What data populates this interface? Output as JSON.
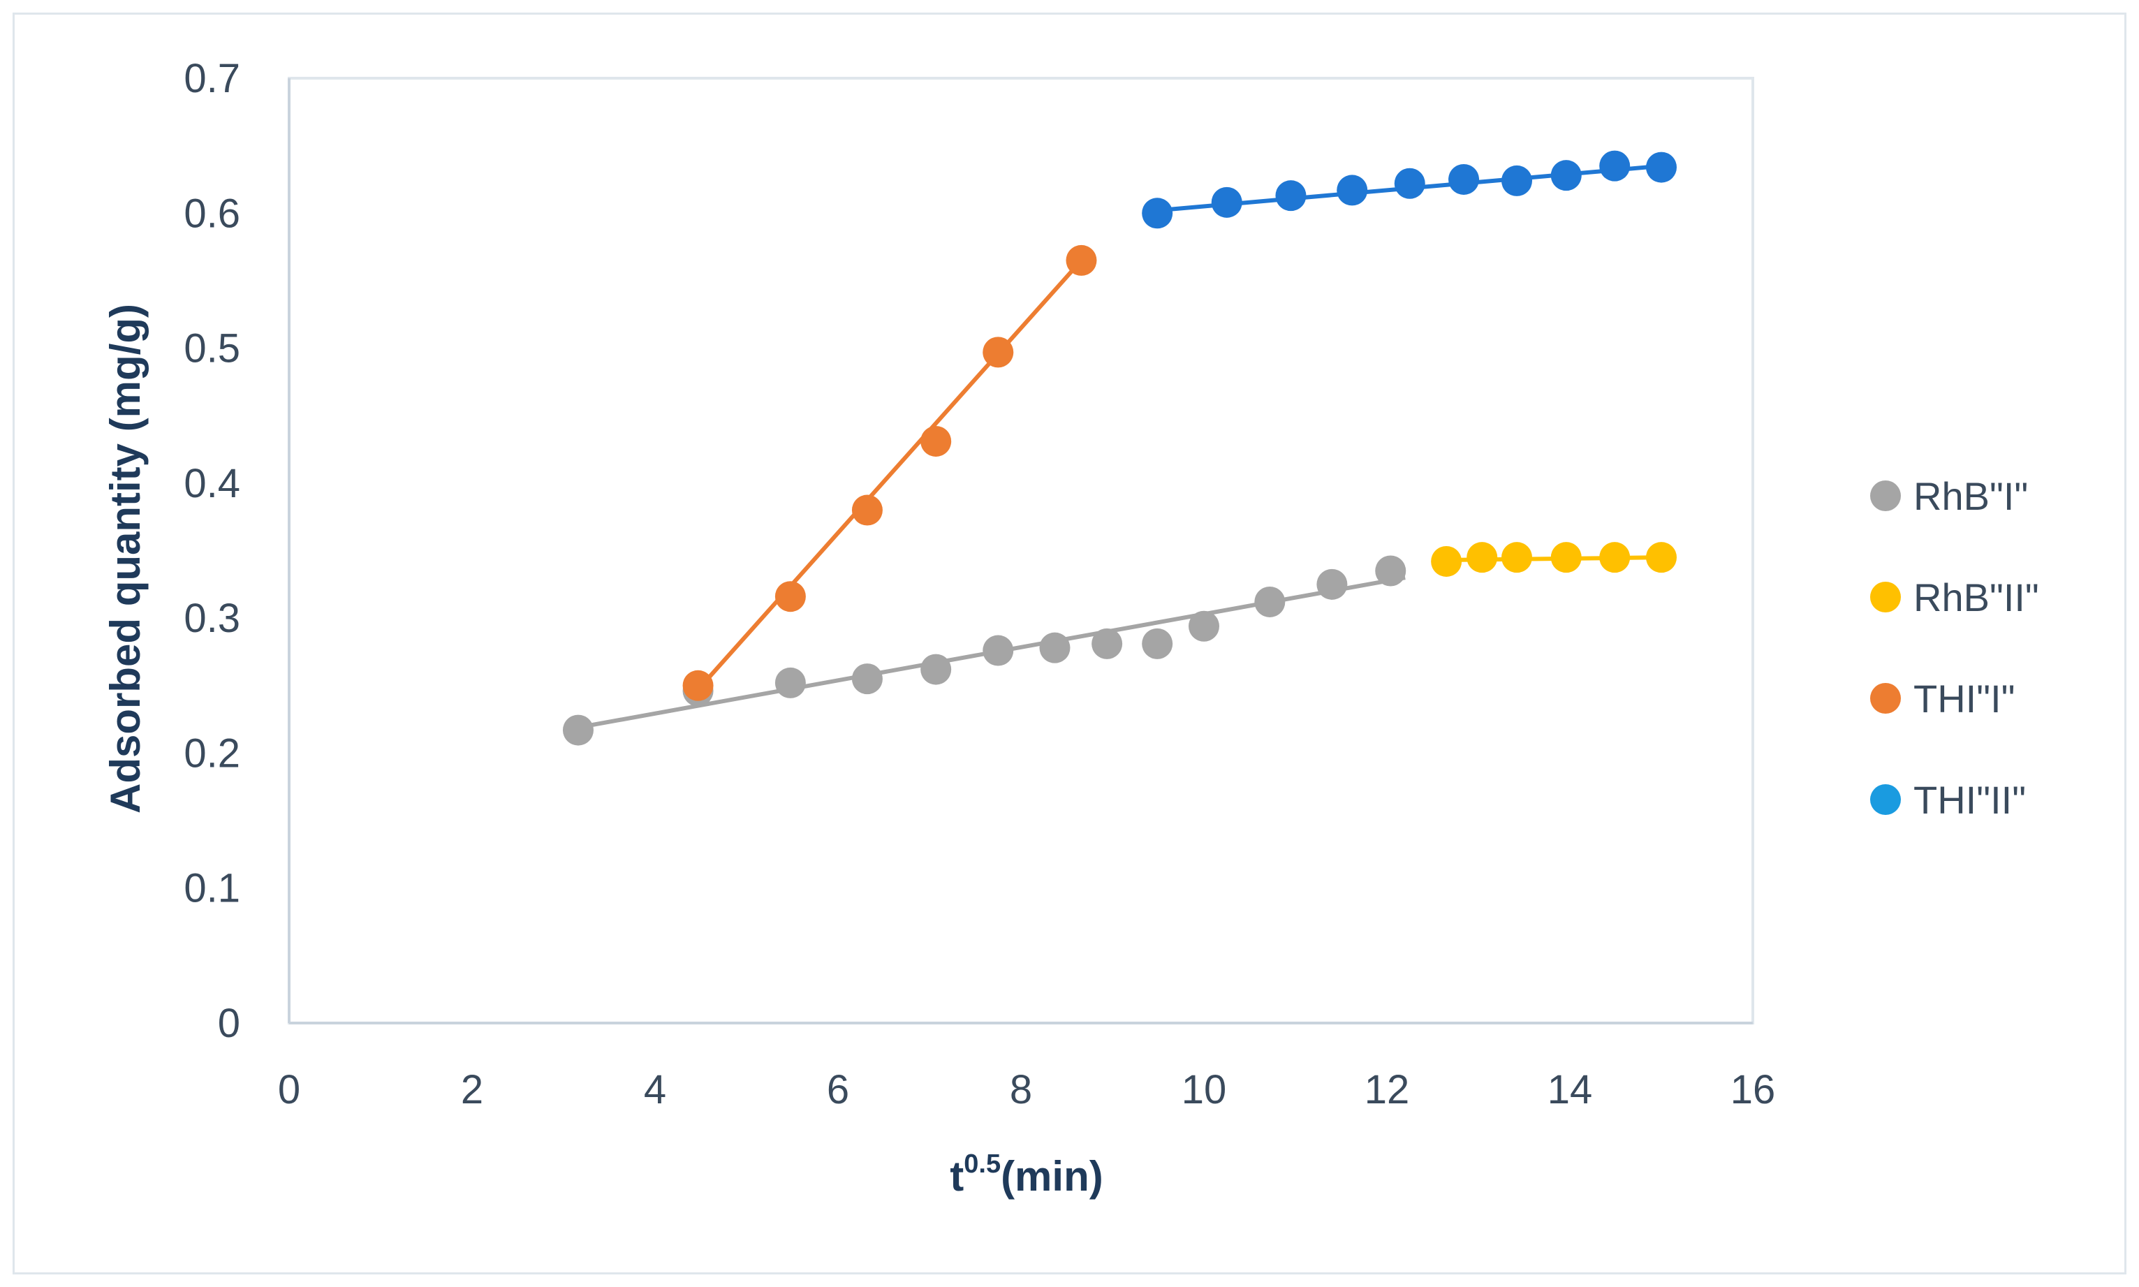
{
  "chart_data": {
    "type": "scatter",
    "xlabel": "t",
    "xlabel_sup": "0.5",
    "xlabel_suffix": "(min)",
    "ylabel": "Adsorbed quantity (mg/g)",
    "xlim": [
      0,
      16
    ],
    "ylim": [
      0,
      0.7
    ],
    "x_ticks": [
      "0",
      "2",
      "4",
      "6",
      "8",
      "10",
      "12",
      "14",
      "16"
    ],
    "y_ticks": [
      "0",
      "0.1",
      "0.2",
      "0.3",
      "0.4",
      "0.5",
      "0.6",
      "0.7"
    ],
    "grid": false,
    "legend_position": "right",
    "series": [
      {
        "name": "RhB\"I\"",
        "color": "#a5a5a5",
        "line_color": "#a5a5a5",
        "trendline": true,
        "points": [
          [
            3.16,
            0.217
          ],
          [
            4.47,
            0.246
          ],
          [
            5.48,
            0.252
          ],
          [
            6.32,
            0.255
          ],
          [
            7.07,
            0.262
          ],
          [
            7.75,
            0.276
          ],
          [
            8.37,
            0.278
          ],
          [
            8.94,
            0.281
          ],
          [
            9.49,
            0.281
          ],
          [
            10.0,
            0.294
          ],
          [
            10.72,
            0.312
          ],
          [
            11.4,
            0.325
          ],
          [
            12.04,
            0.335
          ]
        ],
        "trend": [
          [
            3.16,
            0.219
          ],
          [
            12.2,
            0.33
          ]
        ]
      },
      {
        "name": "RhB\"II\"",
        "color": "#ffc000",
        "line_color": "#ffc000",
        "trendline": true,
        "points": [
          [
            12.65,
            0.342
          ],
          [
            13.04,
            0.345
          ],
          [
            13.42,
            0.345
          ],
          [
            13.96,
            0.345
          ],
          [
            14.49,
            0.345
          ],
          [
            15.0,
            0.345
          ]
        ],
        "trend": [
          [
            12.65,
            0.343
          ],
          [
            15.0,
            0.345
          ]
        ]
      },
      {
        "name": "THI\"I\"",
        "color": "#ed7d31",
        "line_color": "#ed7d31",
        "trendline": true,
        "points": [
          [
            4.47,
            0.25
          ],
          [
            5.48,
            0.316
          ],
          [
            6.32,
            0.38
          ],
          [
            7.07,
            0.431
          ],
          [
            7.75,
            0.497
          ],
          [
            8.66,
            0.565
          ]
        ],
        "trend": [
          [
            4.47,
            0.247
          ],
          [
            8.66,
            0.565
          ]
        ]
      },
      {
        "name": "THI\"II\"",
        "color": "#1f77d4",
        "line_color": "#1f77d4",
        "marker_color": "#1f77d4",
        "legend_color": "#1a9be0",
        "trendline": true,
        "points": [
          [
            9.49,
            0.6
          ],
          [
            10.25,
            0.608
          ],
          [
            10.95,
            0.613
          ],
          [
            11.62,
            0.617
          ],
          [
            12.25,
            0.622
          ],
          [
            12.84,
            0.625
          ],
          [
            13.42,
            0.624
          ],
          [
            13.96,
            0.628
          ],
          [
            14.49,
            0.635
          ],
          [
            15.0,
            0.634
          ]
        ],
        "trend": [
          [
            9.49,
            0.602
          ],
          [
            15.0,
            0.635
          ]
        ]
      }
    ]
  }
}
